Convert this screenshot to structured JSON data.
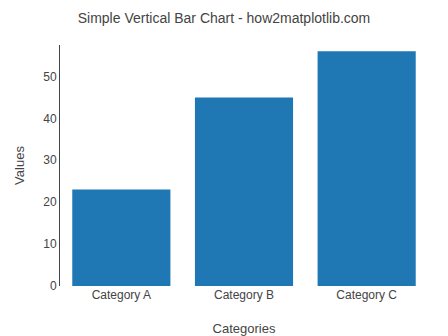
{
  "chart_data": {
    "type": "bar",
    "title": "Simple Vertical Bar Chart - how2matplotlib.com",
    "xlabel": "Categories",
    "ylabel": "Values",
    "categories": [
      "Category A",
      "Category B",
      "Category C"
    ],
    "values": [
      23,
      45,
      56
    ],
    "color": "#1f77b4",
    "ylim": [
      0,
      57.5
    ],
    "yticks": [
      0,
      10,
      20,
      30,
      40,
      50
    ],
    "grid": false
  }
}
